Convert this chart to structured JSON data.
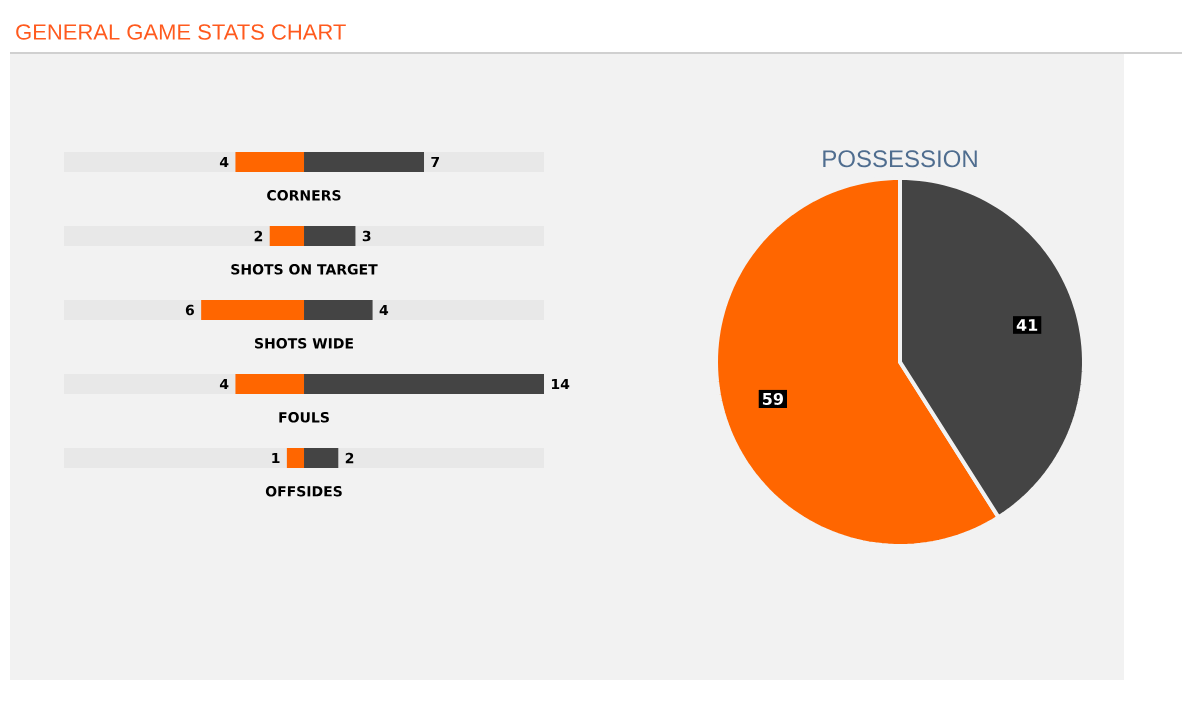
{
  "chart_data": [
    {
      "type": "bar",
      "title": "GENERAL GAME STATS CHART",
      "orientation": "horizontal",
      "data_labels": true,
      "xlim": [
        14,
        0
      ],
      "color": "#ff6600",
      "categories": [
        "CORNERS",
        "SHOTS ON TARGET",
        "SHOTS WIDE",
        "FOULS",
        "OFFSIDES"
      ],
      "values": [
        4,
        2,
        6,
        4,
        1
      ]
    },
    {
      "type": "bar",
      "orientation": "horizontal",
      "data_labels": true,
      "xlim": [
        0,
        14
      ],
      "color": "#444444",
      "categories": [
        null,
        null,
        null,
        null,
        null
      ],
      "values": [
        7,
        3,
        4,
        14,
        2
      ]
    },
    {
      "type": "pie",
      "title": "POSSESSION",
      "categories": [
        null,
        null
      ],
      "values": [
        59,
        41
      ],
      "colors": [
        "#ff6600",
        "#444444"
      ],
      "data_labels": true
    }
  ]
}
